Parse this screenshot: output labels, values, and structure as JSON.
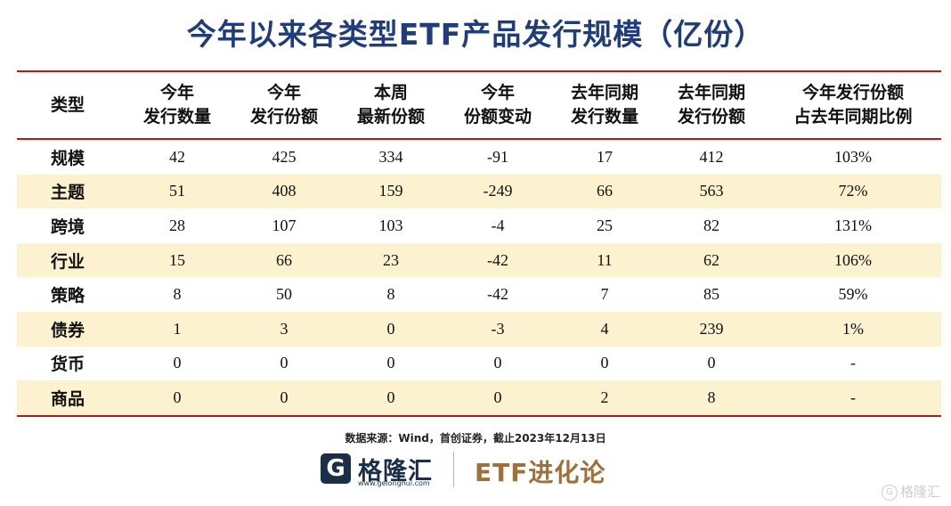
{
  "title": "今年以来各类型ETF产品发行规模（亿份）",
  "table": {
    "headers": [
      {
        "l1": "类型",
        "l2": ""
      },
      {
        "l1": "今年",
        "l2": "发行数量"
      },
      {
        "l1": "今年",
        "l2": "发行份额"
      },
      {
        "l1": "本周",
        "l2": "最新份额"
      },
      {
        "l1": "今年",
        "l2": "份额变动"
      },
      {
        "l1": "去年同期",
        "l2": "发行数量"
      },
      {
        "l1": "去年同期",
        "l2": "发行份额"
      },
      {
        "l1": "今年发行份额",
        "l2": "占去年同期比例"
      }
    ],
    "rows": [
      [
        "规模",
        "42",
        "425",
        "334",
        "-91",
        "17",
        "412",
        "103%"
      ],
      [
        "主题",
        "51",
        "408",
        "159",
        "-249",
        "66",
        "563",
        "72%"
      ],
      [
        "跨境",
        "28",
        "107",
        "103",
        "-4",
        "25",
        "82",
        "131%"
      ],
      [
        "行业",
        "15",
        "66",
        "23",
        "-42",
        "11",
        "62",
        "106%"
      ],
      [
        "策略",
        "8",
        "50",
        "8",
        "-42",
        "7",
        "85",
        "59%"
      ],
      [
        "债券",
        "1",
        "3",
        "0",
        "-3",
        "4",
        "239",
        "1%"
      ],
      [
        "货币",
        "0",
        "0",
        "0",
        "0",
        "0",
        "0",
        "-"
      ],
      [
        "商品",
        "0",
        "0",
        "0",
        "0",
        "2",
        "8",
        "-"
      ]
    ]
  },
  "source": "数据来源：Wind，首创证券，截止2023年12月13日",
  "logo": {
    "mark": "G",
    "name": "格隆汇",
    "url": "www.gelonghui.com",
    "etf": "ETF进化论"
  },
  "watermark": "格隆汇",
  "colors": {
    "title": "#1f3d7a",
    "rule": "#b01c1c",
    "band": "#fdf2cf",
    "etf_brand": "#a0703a"
  }
}
